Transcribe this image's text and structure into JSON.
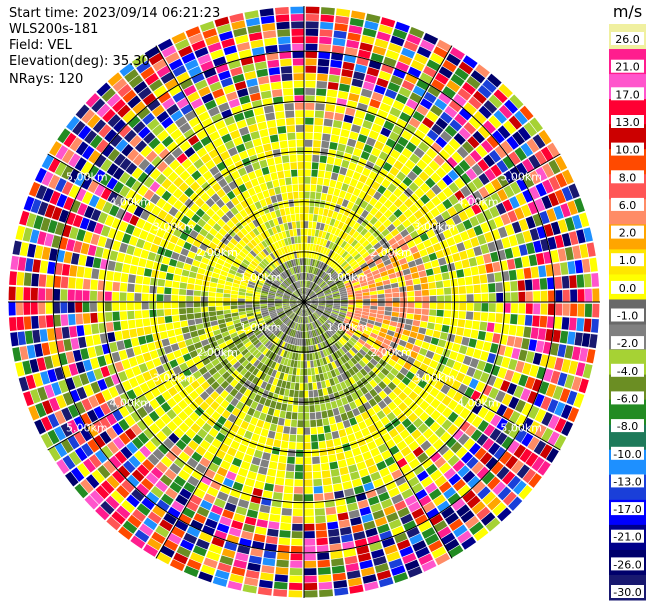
{
  "header": {
    "start_time": "Start time: 2023/09/14 06:21:23",
    "instrument": "WLS200s-181",
    "field": "Field: VEL",
    "elevation": "Elevation(deg): 35.30",
    "nrays": "NRays: 120"
  },
  "chart_data": {
    "type": "polar-ppi",
    "field": "VEL",
    "units": "m/s",
    "n_rays": 120,
    "range_rings_km": [
      1.0,
      2.0,
      3.0,
      4.0,
      5.0
    ],
    "ring_labels": [
      "1.00km",
      "2.00km",
      "3.00km",
      "4.00km",
      "5.00km"
    ],
    "max_range_km": 5.9,
    "n_gates": 40,
    "colorbar": {
      "title": "m/s",
      "ticks": [
        "26.0",
        "21.0",
        "17.0",
        "13.0",
        "10.0",
        "8.0",
        "6.0",
        "2.0",
        "1.0",
        "0.0",
        "-1.0",
        "-2.0",
        "-4.0",
        "-6.0",
        "-8.0",
        "-10.0",
        "-13.0",
        "-17.0",
        "-21.0",
        "-26.0",
        "-30.0"
      ],
      "colors": [
        "#f0f0a0",
        "#ff1d8e",
        "#ff55cc",
        "#ff0033",
        "#cc0000",
        "#ff4a00",
        "#ff5555",
        "#ff8c66",
        "#ffa500",
        "#ffe600",
        "#ffff00",
        "#696969",
        "#808080",
        "#a6d234",
        "#6b8e23",
        "#228b22",
        "#1e7a5a",
        "#1e90ff",
        "#1a3fd9",
        "#0000ff",
        "#00008b",
        "#00006b",
        "#191970"
      ]
    }
  }
}
